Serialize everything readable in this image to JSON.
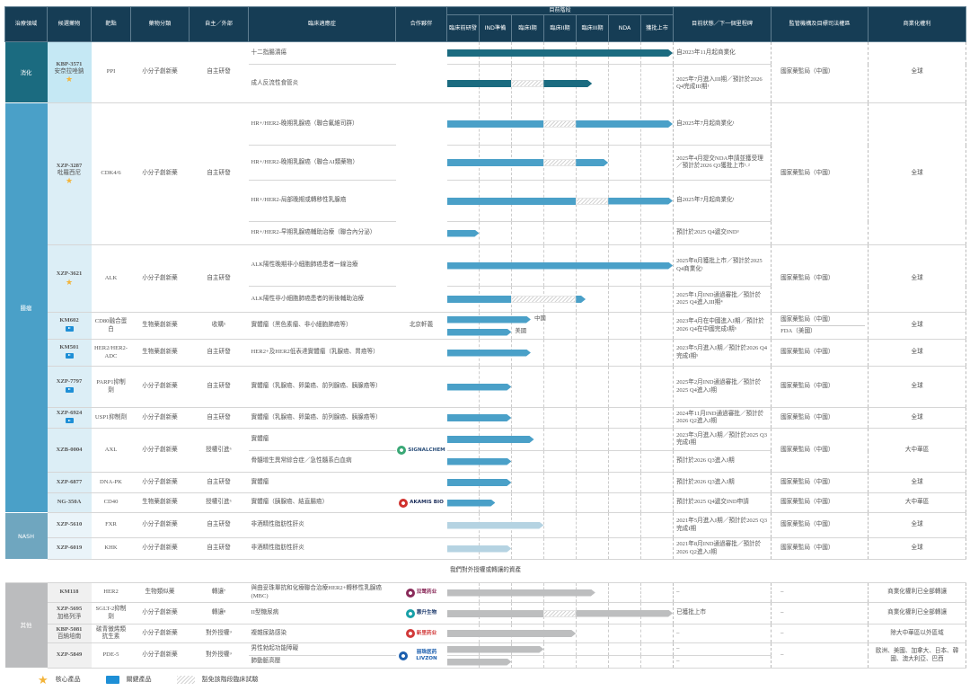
{
  "header": {
    "area": "治療領域",
    "drug": "候選藥物",
    "target": "靶點",
    "class": "藥物分類",
    "source": "自主／外部",
    "indication": "臨床適應症",
    "partner": "合作夥伴",
    "stage": "目前階段",
    "phases": [
      "臨床前研發",
      "IND準備",
      "臨床I期",
      "臨床II期",
      "臨床III期",
      "NDA",
      "獲批上市"
    ],
    "status": "目前狀態／下一個里程碑",
    "regulator": "監管機構及目標司法權區",
    "rights": "商業化權利"
  },
  "colors": {
    "header": "#163d55",
    "core_star": "#f3b43a",
    "key_tag": "#1e8fd6"
  },
  "progress_unit": "phases completed (0–7, one per stage column)",
  "groups": [
    {
      "area": "消化",
      "color": "#1b6b80",
      "drug_bg": "#c5e8f4",
      "bar": "#1b6b80",
      "drugs": [
        {
          "code": "KBP-3571",
          "name": "安奈拉唑鈉",
          "badge": "core",
          "target": "PPI",
          "class": "小分子創新藥",
          "source": "自主研發",
          "partner": "",
          "regulator": [
            "國家藥監局（中國）"
          ],
          "rights": "全球",
          "indications": [
            {
              "text": "十二指腸潰瘍",
              "tracks": [
                {
                  "segments": [
                    [
                      0,
                      7,
                      "solid"
                    ]
                  ]
                }
              ],
              "status": "自2023年11月起商業化"
            },
            {
              "text": "成人反流性食管炎",
              "tracks": [
                {
                  "segments": [
                    [
                      0,
                      2,
                      "solid"
                    ],
                    [
                      2,
                      3,
                      "waived"
                    ],
                    [
                      3,
                      4.5,
                      "solid"
                    ]
                  ]
                }
              ],
              "status": "2025年7月進入III期／預計於2026 Q4完成III期¹"
            }
          ]
        }
      ]
    },
    {
      "area": "腫瘤",
      "color": "#4aa0c8",
      "drug_bg": "#dceef6",
      "bar": "#4aa0c8",
      "drugs": [
        {
          "code": "XZP-3287",
          "name": "吡羅西尼",
          "badge": "core",
          "target": "CDK4/6",
          "class": "小分子創新藥",
          "source": "自主研發",
          "partner": "",
          "regulator": [
            "國家藥監局（中國）"
          ],
          "rights": "全球",
          "indications": [
            {
              "text": "HR+/HER2-晚期乳腺癌（聯合氟維司群）",
              "tracks": [
                {
                  "segments": [
                    [
                      0,
                      3,
                      "solid"
                    ],
                    [
                      3,
                      4,
                      "waived"
                    ],
                    [
                      4,
                      7,
                      "solid"
                    ]
                  ]
                }
              ],
              "status": "自2025年7月起商業化¹"
            },
            {
              "text": "HR+/HER2-晚期乳腺癌（聯合AI類藥物）",
              "tracks": [
                {
                  "segments": [
                    [
                      0,
                      3,
                      "solid"
                    ],
                    [
                      3,
                      4,
                      "waived"
                    ],
                    [
                      4,
                      5,
                      "solid"
                    ]
                  ]
                }
              ],
              "status": "2025年4月提交NDA申請並獲受理／預計於2026 Q3獲批上市¹˒²"
            },
            {
              "text": "HR+/HER2-局部晚期或轉移性乳腺癌",
              "tracks": [
                {
                  "segments": [
                    [
                      0,
                      4,
                      "solid"
                    ],
                    [
                      4,
                      5,
                      "waived"
                    ],
                    [
                      5,
                      7,
                      "solid"
                    ]
                  ]
                }
              ],
              "status": "自2025年7月起商業化¹"
            },
            {
              "text": "HR+/HER2-早期乳腺癌輔助治療（聯合內分泌）",
              "tracks": [
                {
                  "segments": [
                    [
                      0,
                      1,
                      "solid"
                    ]
                  ]
                }
              ],
              "status": "預計於2025 Q4遞交IND³"
            }
          ]
        },
        {
          "code": "XZP-3621",
          "name": "",
          "badge": "core",
          "target": "ALK",
          "class": "小分子創新藥",
          "source": "自主研發",
          "partner": "",
          "regulator": [
            "國家藥監局（中國）"
          ],
          "rights": "全球",
          "indications": [
            {
              "text": "ALK陽性晚期非小細胞肺癌患者一線治療",
              "tracks": [
                {
                  "segments": [
                    [
                      0,
                      7,
                      "solid"
                    ]
                  ]
                }
              ],
              "status": "2025年8月獲批上市／預計於2025 Q4商業化¹"
            },
            {
              "text": "ALK陽性非小細胞肺癌患者的術後輔助治療",
              "tracks": [
                {
                  "segments": [
                    [
                      0,
                      2,
                      "solid"
                    ],
                    [
                      2,
                      4,
                      "waived"
                    ],
                    [
                      4,
                      4.3,
                      "solid"
                    ]
                  ]
                }
              ],
              "status": "2025年1月IND通過審批／預計於2025 Q4進入III期⁴"
            }
          ]
        },
        {
          "code": "KM602",
          "name": "",
          "badge": "key",
          "target": "CD80融合蛋白",
          "class": "生物藥創新藥",
          "source": "收購⁵",
          "partner": "北京軒義",
          "regulator": [
            "國家藥監局（中國）",
            "FDA（美國）"
          ],
          "rights": "全球",
          "indications": [
            {
              "text": "實體瘤（黑色素瘤、非小細胞肺癌等）",
              "tracks": [
                {
                  "segments": [
                    [
                      0,
                      2.6,
                      "solid"
                    ]
                  ],
                  "label": "中國"
                },
                {
                  "segments": [
                    [
                      0,
                      2,
                      "solid"
                    ]
                  ],
                  "label": "美國"
                }
              ],
              "status": "2023年4月在中國進入I期／預計於2026 Q4在中國完成I期⁵"
            }
          ]
        },
        {
          "code": "KM501",
          "name": "",
          "badge": "key",
          "target": "HER2/HER2-ADC",
          "class": "生物藥創新藥",
          "source": "自主研發",
          "partner": "",
          "regulator": [
            "國家藥監局（中國）"
          ],
          "rights": "全球",
          "indications": [
            {
              "text": "HER2+及HER2低表達實體瘤（乳腺癌、胃癌等）",
              "tracks": [
                {
                  "segments": [
                    [
                      0,
                      2.6,
                      "solid"
                    ]
                  ]
                }
              ],
              "status": "2023年5月進入I期／預計於2026 Q4完成I期⁵"
            }
          ]
        },
        {
          "code": "XZP-7797",
          "name": "",
          "badge": "key",
          "target": "PARP1抑制劑",
          "class": "小分子創新藥",
          "source": "自主研發",
          "partner": "",
          "regulator": [
            "國家藥監局（中國）"
          ],
          "rights": "全球",
          "indications": [
            {
              "text": "實體瘤（乳腺癌、卵巢癌、前列腺癌、胰腺癌等）",
              "tracks": [
                {
                  "segments": [
                    [
                      0,
                      2,
                      "solid"
                    ]
                  ]
                }
              ],
              "status": "2025年2月IND通過審批／預計於2025 Q4進入I期"
            }
          ]
        },
        {
          "code": "XZP-6924",
          "name": "",
          "badge": "key",
          "target": "USP1抑制劑",
          "class": "小分子創新藥",
          "source": "自主研發",
          "partner": "",
          "regulator": [
            "國家藥監局（中國）"
          ],
          "rights": "全球",
          "indications": [
            {
              "text": "實體瘤（乳腺癌、卵巢癌、前列腺癌、胰腺癌等）",
              "tracks": [
                {
                  "segments": [
                    [
                      0,
                      2,
                      "solid"
                    ]
                  ]
                }
              ],
              "status": "2024年11月IND通過審批／預計於2026 Q2進入I期"
            }
          ]
        },
        {
          "code": "XZB-0004",
          "name": "",
          "badge": "",
          "target": "AXL",
          "class": "小分子創新藥",
          "source": "授權引進⁶",
          "partner_logo": {
            "text": "SIGNALCHEM",
            "color": "#2b4f7a",
            "mark": "#3aa876"
          },
          "regulator": [
            "國家藥監局（中國）"
          ],
          "rights": "大中華區",
          "indications": [
            {
              "text": "實體瘤",
              "tracks": [
                {
                  "segments": [
                    [
                      0,
                      2.7,
                      "solid"
                    ]
                  ]
                }
              ],
              "status": "2023年3月進入I期／預計於2025 Q3完成I期"
            },
            {
              "text": "骨髓增生異常綜合症／急性髓系白血病",
              "tracks": [
                {
                  "segments": [
                    [
                      0,
                      2,
                      "solid"
                    ]
                  ]
                }
              ],
              "status": "預計於2026 Q3進入I期"
            }
          ]
        },
        {
          "code": "XZP-6877",
          "name": "",
          "badge": "",
          "target": "DNA-PK",
          "class": "小分子創新藥",
          "source": "自主研發",
          "partner": "",
          "regulator": [
            "國家藥監局（中國）"
          ],
          "rights": "全球",
          "indications": [
            {
              "text": "實體瘤",
              "tracks": [
                {
                  "segments": [
                    [
                      0,
                      2,
                      "solid"
                    ]
                  ]
                }
              ],
              "status": "預計於2026 Q3進入I期"
            }
          ]
        },
        {
          "code": "NG-350A",
          "name": "",
          "badge": "",
          "target": "CD40",
          "class": "生物藥創新藥",
          "source": "授權引進⁶",
          "partner_logo": {
            "text": "AKAMIS BIO",
            "color": "#1d2f5c",
            "mark": "#d0312d"
          },
          "regulator": [
            "國家藥監局（中國）"
          ],
          "rights": "大中華區",
          "indications": [
            {
              "text": "實體瘤（胰腺癌、結直腸癌）",
              "tracks": [
                {
                  "segments": [
                    [
                      0,
                      1.5,
                      "solid"
                    ]
                  ]
                }
              ],
              "status": "預計於2025 Q4遞交IND申請"
            }
          ]
        }
      ]
    },
    {
      "area": "NASH",
      "color": "#6fa6bf",
      "drug_bg": "#eaf4f9",
      "bar": "#b5d3e2",
      "drugs": [
        {
          "code": "XZP-5610",
          "name": "",
          "badge": "",
          "target": "FXR",
          "class": "小分子創新藥",
          "source": "自主研發",
          "partner": "",
          "regulator": [
            "國家藥監局（中國）"
          ],
          "rights": "全球",
          "indications": [
            {
              "text": "非酒精性脂肪性肝炎",
              "tracks": [
                {
                  "segments": [
                    [
                      0,
                      3,
                      "solid"
                    ]
                  ]
                }
              ],
              "status": "2021年5月進入I期／預計於2025 Q3完成I期"
            }
          ]
        },
        {
          "code": "XZP-6019",
          "name": "",
          "badge": "",
          "target": "KHK",
          "class": "小分子創新藥",
          "source": "自主研發",
          "partner": "",
          "regulator": [
            "國家藥監局（中國）"
          ],
          "rights": "全球",
          "indications": [
            {
              "text": "非酒精性脂肪性肝炎",
              "tracks": [
                {
                  "segments": [
                    [
                      0,
                      2,
                      "solid"
                    ]
                  ]
                }
              ],
              "status": "2021年8月IND通過審批／預計於2026 Q2進入I期"
            }
          ]
        }
      ]
    },
    {
      "area": "其他",
      "color": "#bbbcbe",
      "drug_bg": "#f0f0f0",
      "bar": "#bdbebf",
      "caption": "我們對外授權或轉讓的資產",
      "drugs": [
        {
          "code": "KM118",
          "name": "",
          "badge": "",
          "target": "HER2",
          "class": "生物類似藥",
          "source": "轉讓⁷",
          "partner_logo": {
            "text": "双鹭药业",
            "color": "#8a2b5a",
            "mark": "#8a2b5a"
          },
          "regulator": [
            "–"
          ],
          "rights": "商業化權利已全部轉讓",
          "indications": [
            {
              "text": "與曲妥珠單抗和化療聯合治療HER2+轉移性乳腺癌 (MBC)",
              "tracks": [
                {
                  "segments": [
                    [
                      0,
                      4.6,
                      "solid"
                    ]
                  ]
                }
              ],
              "status": "–"
            }
          ]
        },
        {
          "code": "XZP-5695",
          "name": "加格列淨",
          "badge": "",
          "target": "SGLT-2抑制劑",
          "class": "小分子創新藥",
          "source": "轉讓⁸",
          "partner_logo": {
            "text": "惠升生物",
            "color": "#1f3c6e",
            "mark": "#18a0a8"
          },
          "regulator": [
            "–"
          ],
          "rights": "商業化權利已全部轉讓",
          "indications": [
            {
              "text": "II型糖尿病",
              "tracks": [
                {
                  "segments": [
                    [
                      0,
                      3,
                      "solid"
                    ],
                    [
                      3,
                      4,
                      "waived"
                    ],
                    [
                      4,
                      7,
                      "solid"
                    ]
                  ]
                }
              ],
              "status": "已獲批上市"
            }
          ]
        },
        {
          "code": "KBP-5081",
          "name": "百納培南",
          "badge": "",
          "target": "碳青黴烯類抗生素",
          "class": "小分子創新藥",
          "source": "對外授權⁹",
          "partner_logo": {
            "text": "新里药业",
            "color": "#d23a3a",
            "mark": "#d23a3a"
          },
          "regulator": [
            "–"
          ],
          "rights": "除大中華區以外區域",
          "indications": [
            {
              "text": "複雜尿路感染",
              "tracks": [
                {
                  "segments": [
                    [
                      0,
                      4,
                      "solid"
                    ]
                  ]
                }
              ],
              "status": "–"
            }
          ]
        },
        {
          "code": "XZP-5849",
          "name": "",
          "badge": "",
          "target": "PDE-5",
          "class": "小分子創新藥",
          "source": "對外授權⁹",
          "partner_logo": {
            "text": "丽珠医药 LIVZON",
            "color": "#1c5fae",
            "mark": "#1c5fae"
          },
          "regulator": [
            "–"
          ],
          "rights": "歐洲、美國、加拿大、日本、韓國、澳大利亞、巴西",
          "indications": [
            {
              "text": "男性勃起功能障礙",
              "tracks": [
                {
                  "segments": [
                    [
                      0,
                      3,
                      "solid"
                    ]
                  ]
                }
              ],
              "status": "–"
            },
            {
              "text": "肺動脈高壓",
              "tracks": [
                {
                  "segments": [
                    [
                      0,
                      2,
                      "solid"
                    ]
                  ]
                }
              ],
              "status": "–"
            }
          ]
        }
      ]
    }
  ],
  "legend": {
    "core": "核心產品",
    "key": "關鍵產品",
    "waived": "豁免該階段臨床試驗"
  }
}
